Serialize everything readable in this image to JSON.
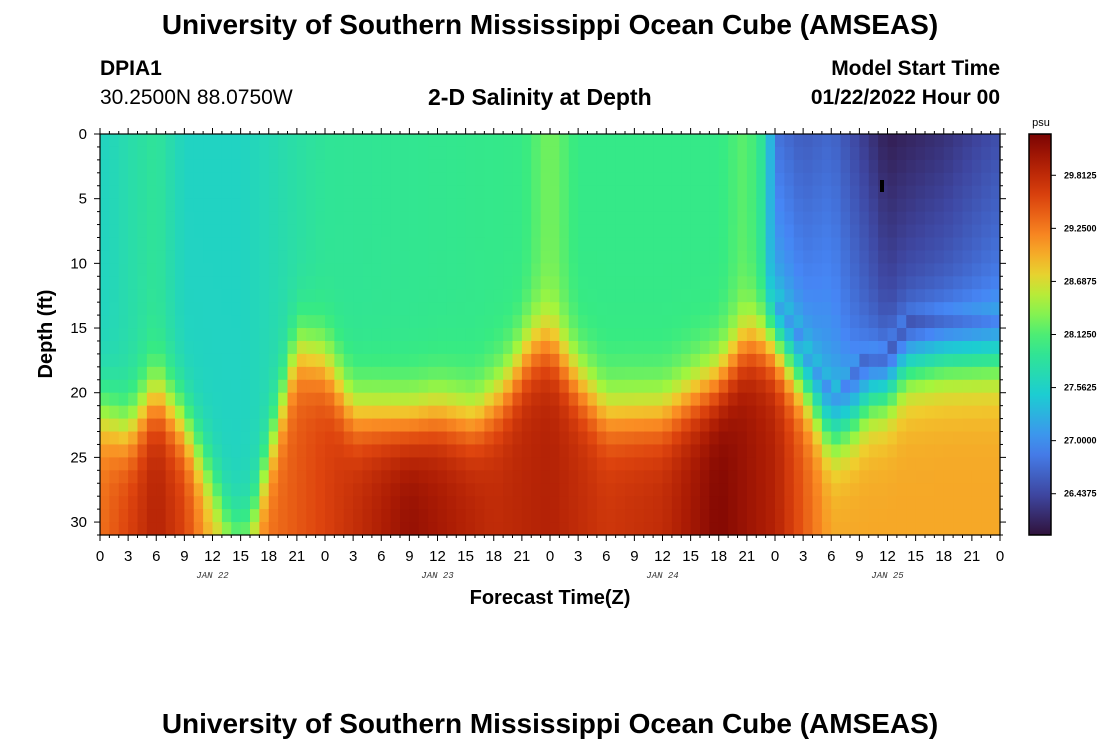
{
  "page": {
    "title": "University of Southern Mississippi Ocean Cube (AMSEAS)",
    "station_id": "DPIA1",
    "coordinates": "30.2500N  88.0750W",
    "plot_title": "2-D Salinity at Depth",
    "model_start_label": "Model Start Time",
    "model_start_value": "01/22/2022 Hour 00",
    "footer_title": "University of Southern Mississippi Ocean Cube (AMSEAS)"
  },
  "chart_data": {
    "type": "heatmap",
    "title": "2-D Salinity at Depth",
    "xlabel": "Forecast Time(Z)",
    "ylabel": "Depth (ft)",
    "x_hours_range": [
      0,
      96
    ],
    "x_tick_step_hours": 3,
    "x_tick_labels": [
      "0",
      "3",
      "6",
      "9",
      "12",
      "15",
      "18",
      "21",
      "0",
      "3",
      "6",
      "9",
      "12",
      "15",
      "18",
      "21",
      "0",
      "3",
      "6",
      "9",
      "12",
      "15",
      "18",
      "21",
      "0",
      "3",
      "6",
      "9",
      "12",
      "15",
      "18",
      "21",
      "0"
    ],
    "day_labels": [
      {
        "label": "JAN 22",
        "center_hour": 12
      },
      {
        "label": "JAN 23",
        "center_hour": 36
      },
      {
        "label": "JAN 24",
        "center_hour": 60
      },
      {
        "label": "JAN 25",
        "center_hour": 84
      }
    ],
    "ylim": [
      0,
      31
    ],
    "y_ticks": [
      0,
      5,
      10,
      15,
      20,
      25,
      30
    ],
    "colorbar": {
      "unit": "psu",
      "range": [
        26.0,
        30.25
      ],
      "tick_values": [
        29.8125,
        29.25,
        28.6875,
        28.125,
        27.5625,
        27.0,
        26.4375
      ],
      "tick_labels": [
        "29.8125",
        "29.2500",
        "28.6875",
        "28.1250",
        "27.5625",
        "27.0000",
        "26.4375"
      ]
    },
    "interface_depth_ft": [
      {
        "hour": 0,
        "depth": 21.5
      },
      {
        "hour": 3,
        "depth": 23
      },
      {
        "hour": 6,
        "depth": 20
      },
      {
        "hour": 9,
        "depth": 22.5
      },
      {
        "hour": 12,
        "depth": 27
      },
      {
        "hour": 14,
        "depth": 31
      },
      {
        "hour": 16,
        "depth": 31
      },
      {
        "hour": 18,
        "depth": 25
      },
      {
        "hour": 21,
        "depth": 16.5
      },
      {
        "hour": 24,
        "depth": 17.5
      },
      {
        "hour": 27,
        "depth": 21.5
      },
      {
        "hour": 33,
        "depth": 22
      },
      {
        "hour": 36,
        "depth": 21.5
      },
      {
        "hour": 40,
        "depth": 22
      },
      {
        "hour": 43,
        "depth": 20
      },
      {
        "hour": 46,
        "depth": 16.5
      },
      {
        "hour": 48,
        "depth": 16
      },
      {
        "hour": 51,
        "depth": 19
      },
      {
        "hour": 54,
        "depth": 21.5
      },
      {
        "hour": 60,
        "depth": 21.5
      },
      {
        "hour": 66,
        "depth": 19
      },
      {
        "hour": 69,
        "depth": 16
      },
      {
        "hour": 72,
        "depth": 16
      },
      {
        "hour": 75,
        "depth": 19
      },
      {
        "hour": 78,
        "depth": 23
      },
      {
        "hour": 80,
        "depth": 22
      },
      {
        "hour": 82,
        "depth": 20
      },
      {
        "hour": 84,
        "depth": 19.5
      },
      {
        "hour": 86,
        "depth": 17.5
      },
      {
        "hour": 90,
        "depth": 17
      },
      {
        "hour": 96,
        "depth": 17
      }
    ],
    "upper_salinity_psu": [
      {
        "hour": 0,
        "value": 27.6
      },
      {
        "hour": 6,
        "value": 27.9
      },
      {
        "hour": 9,
        "value": 27.6
      },
      {
        "hour": 15,
        "value": 27.6
      },
      {
        "hour": 21,
        "value": 27.8
      },
      {
        "hour": 24,
        "value": 27.9
      },
      {
        "hour": 36,
        "value": 27.95
      },
      {
        "hour": 45,
        "value": 28.0
      },
      {
        "hour": 48,
        "value": 28.3
      },
      {
        "hour": 51,
        "value": 28.0
      },
      {
        "hour": 60,
        "value": 28.0
      },
      {
        "hour": 66,
        "value": 28.0
      },
      {
        "hour": 69,
        "value": 28.2
      },
      {
        "hour": 71,
        "value": 27.8
      },
      {
        "hour": 72,
        "value": 26.8
      },
      {
        "hour": 75,
        "value": 26.6
      },
      {
        "hour": 78,
        "value": 26.7
      },
      {
        "hour": 84,
        "value": 26.1
      },
      {
        "hour": 90,
        "value": 26.25
      },
      {
        "hour": 96,
        "value": 26.5
      }
    ],
    "deep_salinity_psu": [
      {
        "hour": 0,
        "value": 29.3
      },
      {
        "hour": 6,
        "value": 29.9
      },
      {
        "hour": 9,
        "value": 29.6
      },
      {
        "hour": 12,
        "value": 28.9
      },
      {
        "hour": 15,
        "value": 28.9
      },
      {
        "hour": 18,
        "value": 29.3
      },
      {
        "hour": 24,
        "value": 29.6
      },
      {
        "hour": 33,
        "value": 30.1
      },
      {
        "hour": 42,
        "value": 29.8
      },
      {
        "hour": 48,
        "value": 29.9
      },
      {
        "hour": 54,
        "value": 29.7
      },
      {
        "hour": 60,
        "value": 29.8
      },
      {
        "hour": 66,
        "value": 30.2
      },
      {
        "hour": 72,
        "value": 29.9
      },
      {
        "hour": 78,
        "value": 29.0
      },
      {
        "hour": 84,
        "value": 29.0
      },
      {
        "hour": 96,
        "value": 29.0
      }
    ]
  }
}
